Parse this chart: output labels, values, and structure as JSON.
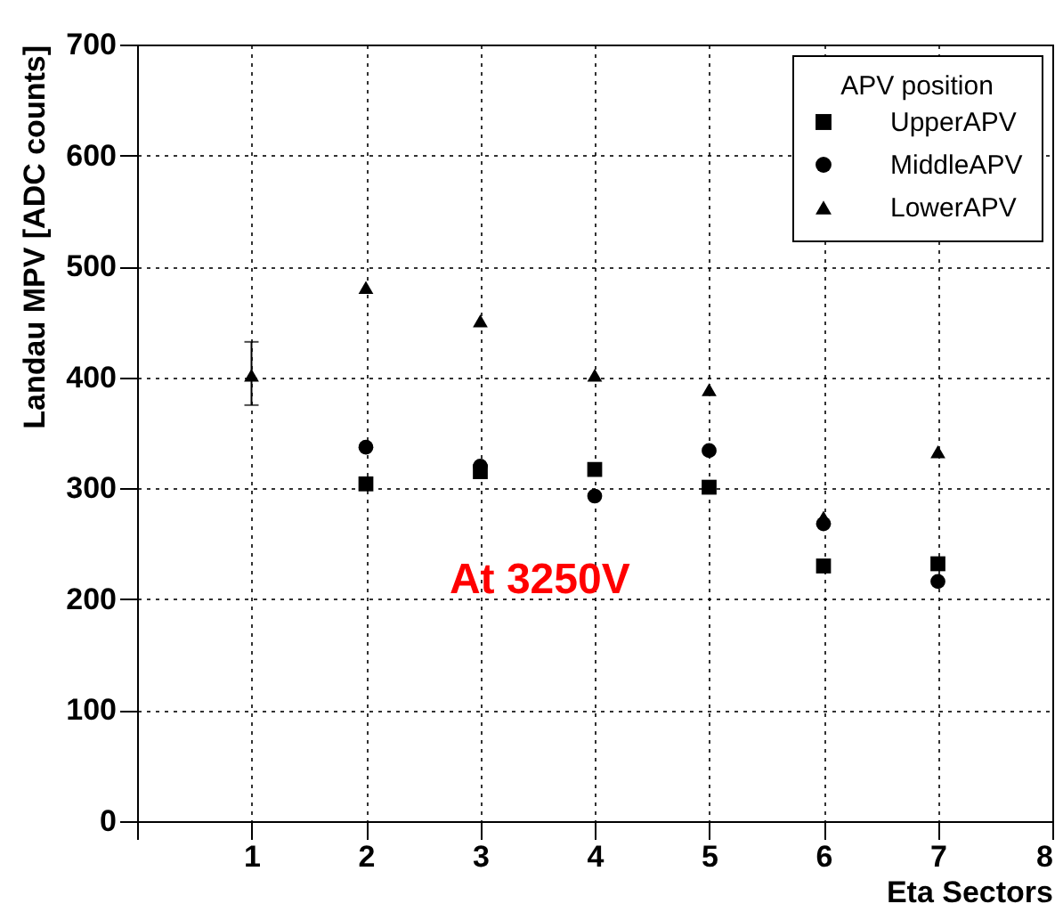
{
  "chart_data": {
    "type": "scatter",
    "xlabel": "Eta Sectors",
    "ylabel": "Landau MPV [ADC counts]",
    "legend_title": "APV position",
    "legend": "top right",
    "grid": true,
    "x": [
      1,
      2,
      3,
      4,
      5,
      6,
      7
    ],
    "xlim": [
      0,
      8
    ],
    "xticks": [
      {
        "value": 0,
        "label": null
      },
      1,
      2,
      3,
      4,
      5,
      6,
      7,
      8
    ],
    "ylim": [
      0,
      700
    ],
    "yticks": [
      0,
      100,
      200,
      300,
      400,
      500,
      600,
      700
    ],
    "series": [
      {
        "name": "UpperAPV",
        "color": "#000000",
        "marker": "square",
        "values": [
          null,
          304,
          315,
          317,
          301,
          230,
          232
        ]
      },
      {
        "name": "MiddleAPV",
        "color": "#000000",
        "marker": "circle",
        "values": [
          null,
          337,
          320,
          293,
          334,
          268,
          216
        ]
      },
      {
        "name": "LowerAPV",
        "color": "#000000",
        "marker": "triangle",
        "values": [
          402,
          481,
          451,
          402,
          389,
          274,
          333
        ],
        "errors": [
          [
            375,
            432
          ],
          null,
          null,
          null,
          null,
          null,
          null
        ]
      }
    ],
    "annotations": [
      "At 3250V"
    ]
  }
}
